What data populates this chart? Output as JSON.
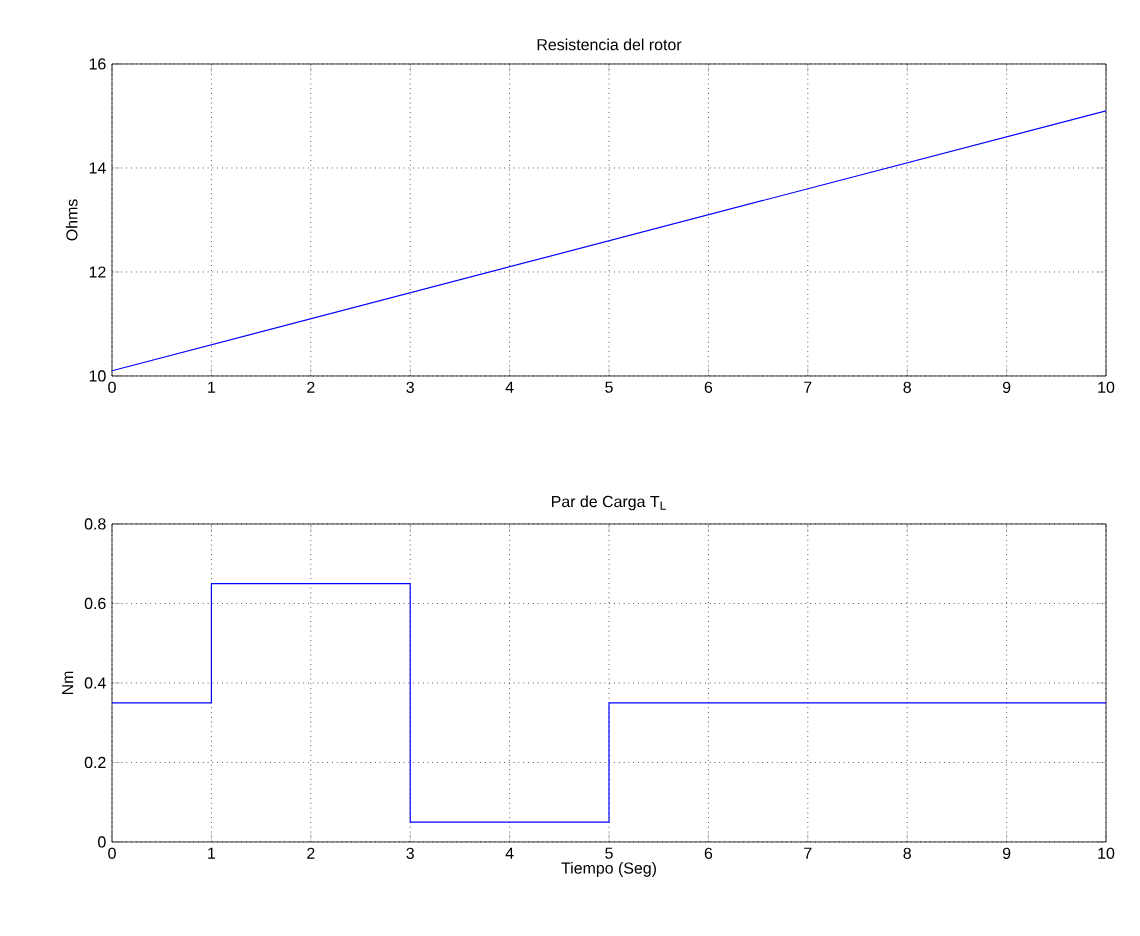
{
  "chart_data": [
    {
      "type": "line",
      "title": "Resistencia del rotor",
      "ylabel": "Ohms",
      "x": [
        0,
        10
      ],
      "series": [
        {
          "color": "#0000ff",
          "values": [
            10.1,
            15.1
          ]
        }
      ],
      "xlim": [
        0,
        10
      ],
      "ylim": [
        10,
        16
      ],
      "xticks": [
        0,
        1,
        2,
        3,
        4,
        5,
        6,
        7,
        8,
        9,
        10
      ],
      "yticks": [
        10,
        12,
        14,
        16
      ],
      "grid": true,
      "line_style": "solid"
    },
    {
      "type": "step",
      "title": "Par de Carga T$_{L}$",
      "xlabel": "Tiempo (Seg)",
      "ylabel": "Nm",
      "x": [
        0,
        1,
        3,
        5,
        10
      ],
      "series": [
        {
          "color": "#0000ff",
          "values": [
            0.35,
            0.65,
            0.05,
            0.35,
            0.35
          ]
        }
      ],
      "xlim": [
        0,
        10
      ],
      "ylim": [
        0,
        0.8
      ],
      "xticks": [
        0,
        1,
        2,
        3,
        4,
        5,
        6,
        7,
        8,
        9,
        10
      ],
      "yticks": [
        0,
        0.2,
        0.4,
        0.6,
        0.8
      ],
      "grid": true,
      "line_style": "solid"
    }
  ]
}
